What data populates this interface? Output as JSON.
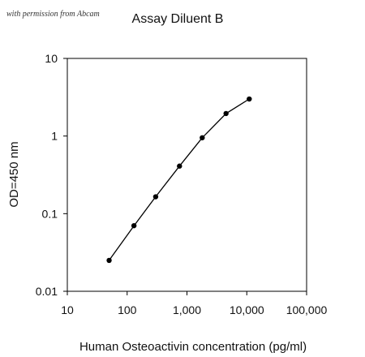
{
  "watermark": "with permission from Abcam",
  "chart_data": {
    "type": "line",
    "title": "Assay Diluent B",
    "xlabel": "Human Osteoactivin concentration (pg/ml)",
    "ylabel": "OD=450 nm",
    "x_scale": "log",
    "y_scale": "log",
    "xlim": [
      10,
      100000
    ],
    "ylim": [
      0.01,
      10
    ],
    "x_ticks": [
      10,
      100,
      1000,
      10000,
      100000
    ],
    "x_tick_labels": [
      "10",
      "100",
      "1,000",
      "10,000",
      "100,000"
    ],
    "y_ticks": [
      0.01,
      0.1,
      1,
      10
    ],
    "y_tick_labels": [
      "0.01",
      "0.1",
      "1",
      "10"
    ],
    "grid": false,
    "series": [
      {
        "color": "#000000",
        "points": [
          {
            "x": 50,
            "y": 0.025
          },
          {
            "x": 130,
            "y": 0.07
          },
          {
            "x": 300,
            "y": 0.165
          },
          {
            "x": 750,
            "y": 0.41
          },
          {
            "x": 1800,
            "y": 0.95
          },
          {
            "x": 4500,
            "y": 1.95
          },
          {
            "x": 11000,
            "y": 3.0
          }
        ]
      }
    ]
  }
}
